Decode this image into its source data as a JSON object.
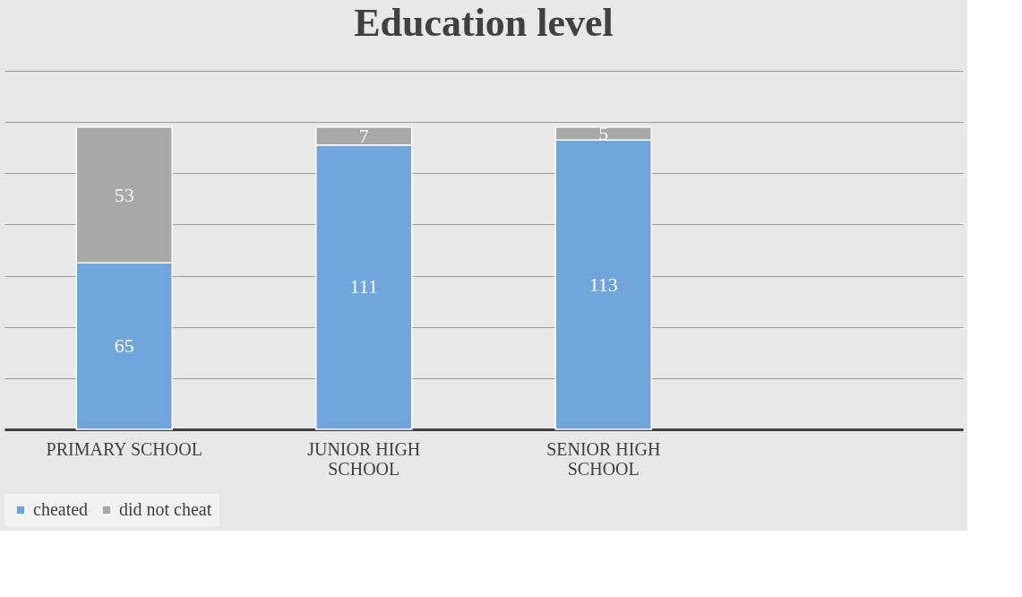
{
  "chart_data": {
    "type": "bar",
    "title": "Education level",
    "stacked": true,
    "data_labels": true,
    "grid": "y",
    "legend": "bottom",
    "tick_labels": "x",
    "categories": [
      "PRIMARY SCHOOL",
      "JUNIOR HIGH SCHOOL",
      "SENIOR HIGH SCHOOL",
      null
    ],
    "ylim": [
      0,
      140
    ],
    "yticks": [
      {
        "value": 0,
        "label": null
      },
      {
        "value": 20,
        "label": null
      },
      {
        "value": 40,
        "label": null
      },
      {
        "value": 60,
        "label": null
      },
      {
        "value": 80,
        "label": null
      },
      {
        "value": 100,
        "label": null
      },
      {
        "value": 120,
        "label": null
      },
      {
        "value": 140,
        "label": null
      }
    ],
    "series": [
      {
        "name": "cheated",
        "color": "#6fa5da",
        "values": [
          65,
          111,
          113,
          null
        ]
      },
      {
        "name": "did not cheat",
        "color": "#a8a8a8",
        "values": [
          53,
          7,
          5,
          null
        ]
      }
    ]
  }
}
